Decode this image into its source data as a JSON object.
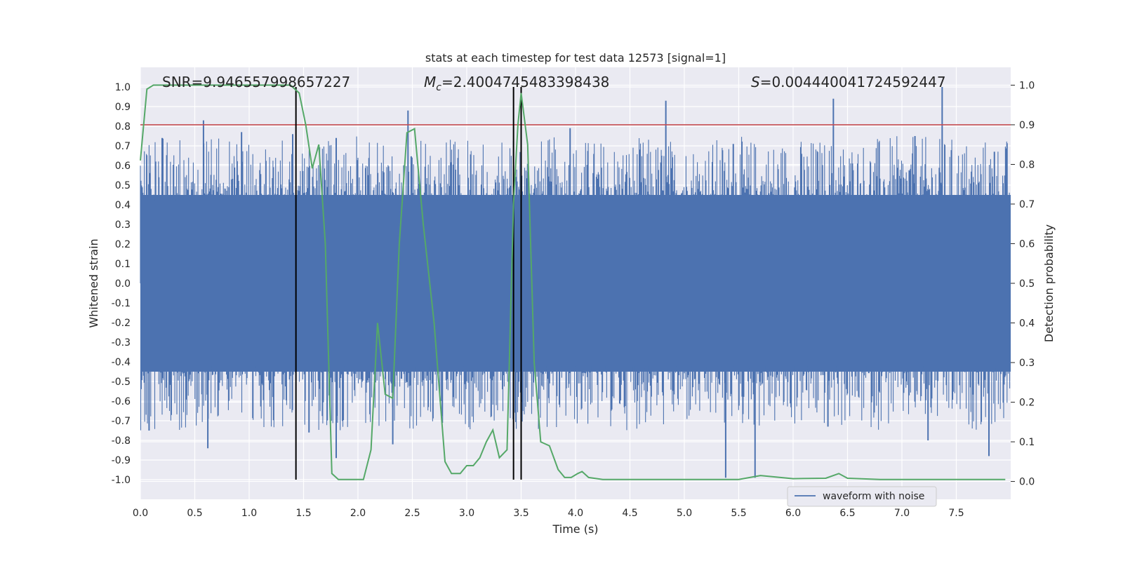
{
  "chart_data": {
    "type": "line",
    "title": "stats at each timestep for test data 12573 [signal=1]",
    "xlabel": "Time (s)",
    "ylabel_left": "Whitened strain",
    "ylabel_right": "Detection probability",
    "xlim": [
      0.0,
      8.0
    ],
    "ylim_left": [
      -1.1,
      1.1
    ],
    "ylim_right": [
      -0.045,
      1.045
    ],
    "x_ticks": [
      "0.0",
      "0.5",
      "1.0",
      "1.5",
      "2.0",
      "2.5",
      "3.0",
      "3.5",
      "4.0",
      "4.5",
      "5.0",
      "5.5",
      "6.0",
      "6.5",
      "7.0",
      "7.5"
    ],
    "y_left_ticks": [
      "1.0",
      "0.9",
      "0.8",
      "0.7",
      "0.6",
      "0.5",
      "0.4",
      "0.3",
      "0.2",
      "0.1",
      "0.0",
      "-0.1",
      "-0.2",
      "-0.3",
      "-0.4",
      "-0.5",
      "-0.6",
      "-0.7",
      "-0.8",
      "-0.9",
      "-1.0"
    ],
    "y_right_ticks": [
      "1.0",
      "0.9",
      "0.8",
      "0.7",
      "0.6",
      "0.5",
      "0.4",
      "0.3",
      "0.2",
      "0.1",
      "0.0"
    ],
    "grid": true,
    "annotations": {
      "snr": "SNR=9.946557998657227",
      "mc_symbol": "M",
      "mc_sub": "c",
      "mc_value": "=2.4004745483398438",
      "s_symbol": "S",
      "s_value": "=0.004440041724592447"
    },
    "threshold": {
      "value": 0.9,
      "axis": "right",
      "color": "#c44e52"
    },
    "vertical_lines": [
      1.43,
      3.43,
      3.5
    ],
    "legend": {
      "entries": [
        "waveform with noise"
      ],
      "location": "lower right"
    },
    "series": [
      {
        "name": "waveform with noise",
        "axis": "left",
        "color": "#4c72b0",
        "kind": "noise",
        "envelope_top": 0.45,
        "envelope_bottom": -0.45,
        "peaks": [
          [
            0.58,
            0.83
          ],
          [
            0.14,
            0.62
          ],
          [
            0.2,
            0.74
          ],
          [
            0.93,
            0.77
          ],
          [
            1.4,
            0.76
          ],
          [
            1.8,
            0.74
          ],
          [
            2.46,
            0.88
          ],
          [
            3.5,
            0.79
          ],
          [
            3.95,
            0.79
          ],
          [
            4.83,
            0.93
          ],
          [
            5.45,
            0.71
          ],
          [
            6.37,
            0.94
          ],
          [
            7.12,
            0.75
          ],
          [
            7.37,
            1.0
          ],
          [
            7.85,
            0.67
          ],
          [
            0.08,
            -0.75
          ],
          [
            0.62,
            -0.84
          ],
          [
            1.55,
            -0.76
          ],
          [
            1.8,
            -0.89
          ],
          [
            2.32,
            -0.82
          ],
          [
            5.38,
            -0.99
          ],
          [
            5.65,
            -0.99
          ],
          [
            6.32,
            -0.73
          ],
          [
            7.24,
            -0.8
          ],
          [
            7.8,
            -0.88
          ]
        ]
      },
      {
        "name": "detection probability",
        "axis": "right",
        "color": "#55a868",
        "kind": "line",
        "x": [
          0.0,
          0.06,
          0.12,
          0.25,
          0.5,
          0.75,
          1.0,
          1.25,
          1.38,
          1.46,
          1.52,
          1.58,
          1.64,
          1.7,
          1.76,
          1.82,
          1.95,
          2.05,
          2.12,
          2.18,
          2.25,
          2.32,
          2.38,
          2.45,
          2.52,
          2.6,
          2.7,
          2.8,
          2.86,
          2.94,
          3.0,
          3.06,
          3.12,
          3.18,
          3.24,
          3.3,
          3.37,
          3.43,
          3.47,
          3.5,
          3.56,
          3.62,
          3.68,
          3.76,
          3.84,
          3.9,
          3.96,
          4.02,
          4.06,
          4.12,
          4.25,
          4.5,
          5.0,
          5.5,
          5.7,
          6.0,
          6.3,
          6.42,
          6.5,
          6.8,
          7.1,
          7.5,
          7.95
        ],
        "y": [
          0.81,
          0.99,
          1.0,
          1.0,
          1.0,
          1.0,
          1.0,
          1.0,
          1.0,
          0.98,
          0.9,
          0.79,
          0.85,
          0.6,
          0.02,
          0.005,
          0.005,
          0.005,
          0.08,
          0.4,
          0.22,
          0.21,
          0.6,
          0.88,
          0.89,
          0.65,
          0.4,
          0.05,
          0.02,
          0.02,
          0.04,
          0.04,
          0.06,
          0.1,
          0.13,
          0.06,
          0.08,
          0.7,
          0.9,
          0.98,
          0.85,
          0.3,
          0.1,
          0.09,
          0.03,
          0.01,
          0.01,
          0.02,
          0.025,
          0.01,
          0.005,
          0.005,
          0.005,
          0.005,
          0.015,
          0.007,
          0.008,
          0.02,
          0.008,
          0.005,
          0.005,
          0.005,
          0.005
        ]
      }
    ]
  }
}
